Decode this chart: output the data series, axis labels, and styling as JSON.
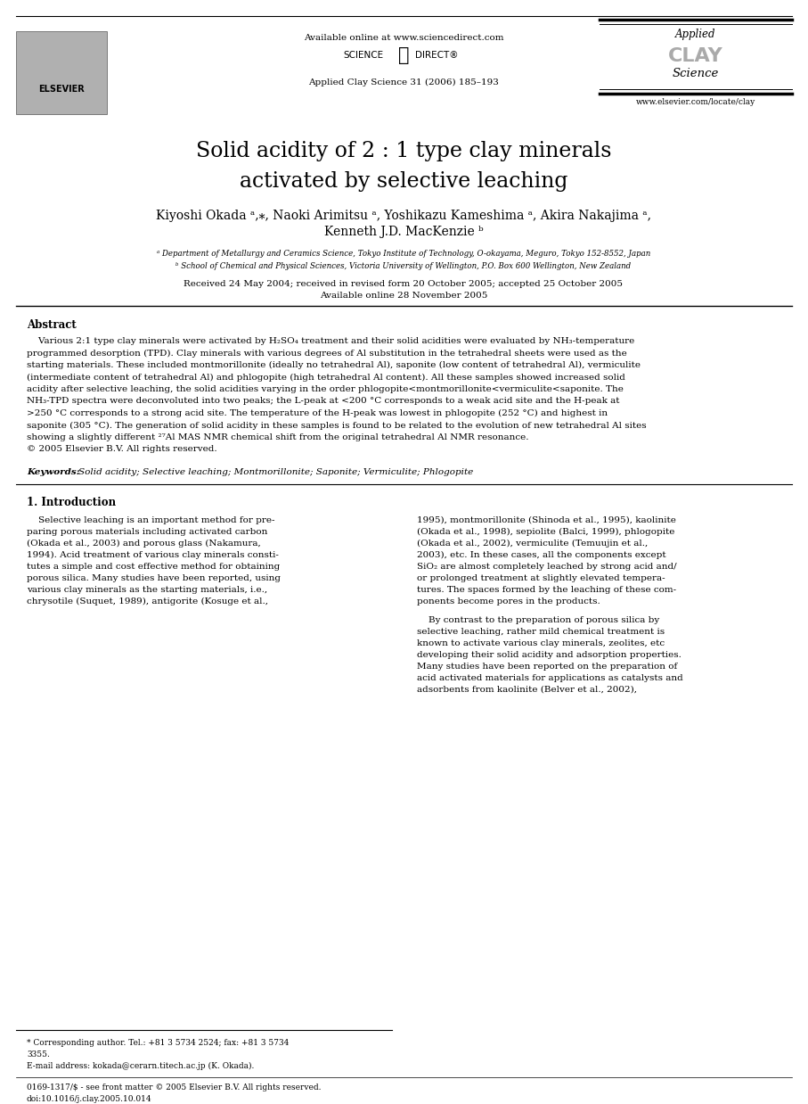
{
  "bg_color": "#ffffff",
  "header": {
    "available_online": "Available online at www.sciencedirect.com",
    "journal_info": "Applied Clay Science 31 (2006) 185–193",
    "elsevier_text": "ELSEVIER",
    "url": "www.elsevier.com/locate/clay"
  },
  "title_line1": "Solid acidity of 2 : 1 type clay minerals",
  "title_line2": "activated by selective leaching",
  "authors": "Kiyoshi Okada ᵃ,⁎, Naoki Arimitsu ᵃ, Yoshikazu Kameshima ᵃ, Akira Nakajima ᵃ,",
  "authors2": "Kenneth J.D. MacKenzie ᵇ",
  "affil1": "ᵃ Department of Metallurgy and Ceramics Science, Tokyo Institute of Technology, O-okayama, Meguro, Tokyo 152-8552, Japan",
  "affil2": "ᵇ School of Chemical and Physical Sciences, Victoria University of Wellington, P.O. Box 600 Wellington, New Zealand",
  "received": "Received 24 May 2004; received in revised form 20 October 2005; accepted 25 October 2005",
  "available": "Available online 28 November 2005",
  "abstract_title": "Abstract",
  "copyright": "© 2005 Elsevier B.V. All rights reserved.",
  "keywords_label": "Keywords:",
  "keywords": "Solid acidity; Selective leaching; Montmorillonite; Saponite; Vermiculite; Phlogopite",
  "section1_title": "1. Introduction",
  "footnote1": "* Corresponding author. Tel.: +81 3 5734 2524; fax: +81 3 5734",
  "footnote2": "3355.",
  "footnote3": "E-mail address: kokada@cerarn.titech.ac.jp (K. Okada).",
  "footer1": "0169-1317/$ - see front matter © 2005 Elsevier B.V. All rights reserved.",
  "footer2": "doi:10.1016/j.clay.2005.10.014",
  "abs_lines": [
    "    Various 2:1 type clay minerals were activated by H₂SO₄ treatment and their solid acidities were evaluated by NH₃-temperature",
    "programmed desorption (TPD). Clay minerals with various degrees of Al substitution in the tetrahedral sheets were used as the",
    "starting materials. These included montmorillonite (ideally no tetrahedral Al), saponite (low content of tetrahedral Al), vermiculite",
    "(intermediate content of tetrahedral Al) and phlogopite (high tetrahedral Al content). All these samples showed increased solid",
    "acidity after selective leaching, the solid acidities varying in the order phlogopite<montmorillonite<vermiculite<saponite. The",
    "NH₃-TPD spectra were deconvoluted into two peaks; the L-peak at <200 °C corresponds to a weak acid site and the H-peak at",
    ">250 °C corresponds to a strong acid site. The temperature of the H-peak was lowest in phlogopite (252 °C) and highest in",
    "saponite (305 °C). The generation of solid acidity in these samples is found to be related to the evolution of new tetrahedral Al sites",
    "showing a slightly different ²⁷Al MAS NMR chemical shift from the original tetrahedral Al NMR resonance.",
    "© 2005 Elsevier B.V. All rights reserved."
  ],
  "intro_left_lines": [
    "    Selective leaching is an important method for pre-",
    "paring porous materials including activated carbon",
    "(Okada et al., 2003) and porous glass (Nakamura,",
    "1994). Acid treatment of various clay minerals consti-",
    "tutes a simple and cost effective method for obtaining",
    "porous silica. Many studies have been reported, using",
    "various clay minerals as the starting materials, i.e.,",
    "chrysotile (Suquet, 1989), antigorite (Kosuge et al.,"
  ],
  "intro_right_lines1": [
    "1995), montmorillonite (Shinoda et al., 1995), kaolinite",
    "(Okada et al., 1998), sepiolite (Balci, 1999), phlogopite",
    "(Okada et al., 2002), vermiculite (Temuujin et al.,",
    "2003), etc. In these cases, all the components except",
    "SiO₂ are almost completely leached by strong acid and/",
    "or prolonged treatment at slightly elevated tempera-",
    "tures. The spaces formed by the leaching of these com-",
    "ponents become pores in the products."
  ],
  "intro_right_lines2": [
    "    By contrast to the preparation of porous silica by",
    "selective leaching, rather mild chemical treatment is",
    "known to activate various clay minerals, zeolites, etc",
    "developing their solid acidity and adsorption properties.",
    "Many studies have been reported on the preparation of",
    "acid activated materials for applications as catalysts and",
    "adsorbents from kaolinite (Belver et al., 2002),"
  ]
}
